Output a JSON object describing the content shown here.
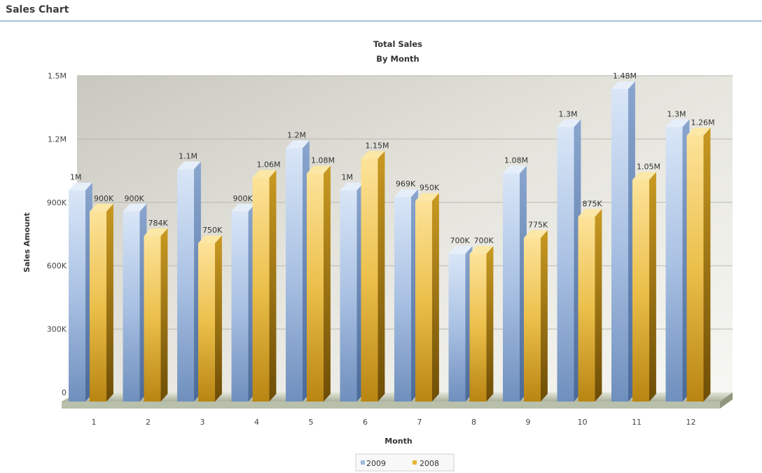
{
  "panel": {
    "title": "Sales Chart"
  },
  "chart_data": {
    "type": "bar",
    "title": "Total Sales",
    "subtitle": "By Month",
    "xlabel": "Month",
    "ylabel": "Sales Amount",
    "ylim": [
      0,
      1500000
    ],
    "yticks": [
      0,
      300000,
      600000,
      900000,
      1200000,
      1500000
    ],
    "ytick_labels": [
      "0",
      "300K",
      "600K",
      "900K",
      "1.2M",
      "1.5M"
    ],
    "categories": [
      "1",
      "2",
      "3",
      "4",
      "5",
      "6",
      "7",
      "8",
      "9",
      "10",
      "11",
      "12"
    ],
    "grid": true,
    "legend_position": "bottom-center",
    "series": [
      {
        "name": "2009",
        "color": "#9fbbe0",
        "values": [
          1000000,
          900000,
          1100000,
          900000,
          1200000,
          1000000,
          969000,
          700000,
          1080000,
          1300000,
          1480000,
          1300000
        ],
        "labels": [
          "1M",
          "900K",
          "1.1M",
          "900K",
          "1.2M",
          "1M",
          "969K",
          "700K",
          "1.08M",
          "1.3M",
          "1.48M",
          "1.3M"
        ]
      },
      {
        "name": "2008",
        "color": "#e8b532",
        "values": [
          900000,
          784000,
          750000,
          1060000,
          1080000,
          1150000,
          950000,
          700000,
          775000,
          875000,
          1050000,
          1260000
        ],
        "labels": [
          "900K",
          "784K",
          "750K",
          "1.06M",
          "1.08M",
          "1.15M",
          "950K",
          "700K",
          "775K",
          "875K",
          "1.05M",
          "1.26M"
        ]
      }
    ]
  }
}
